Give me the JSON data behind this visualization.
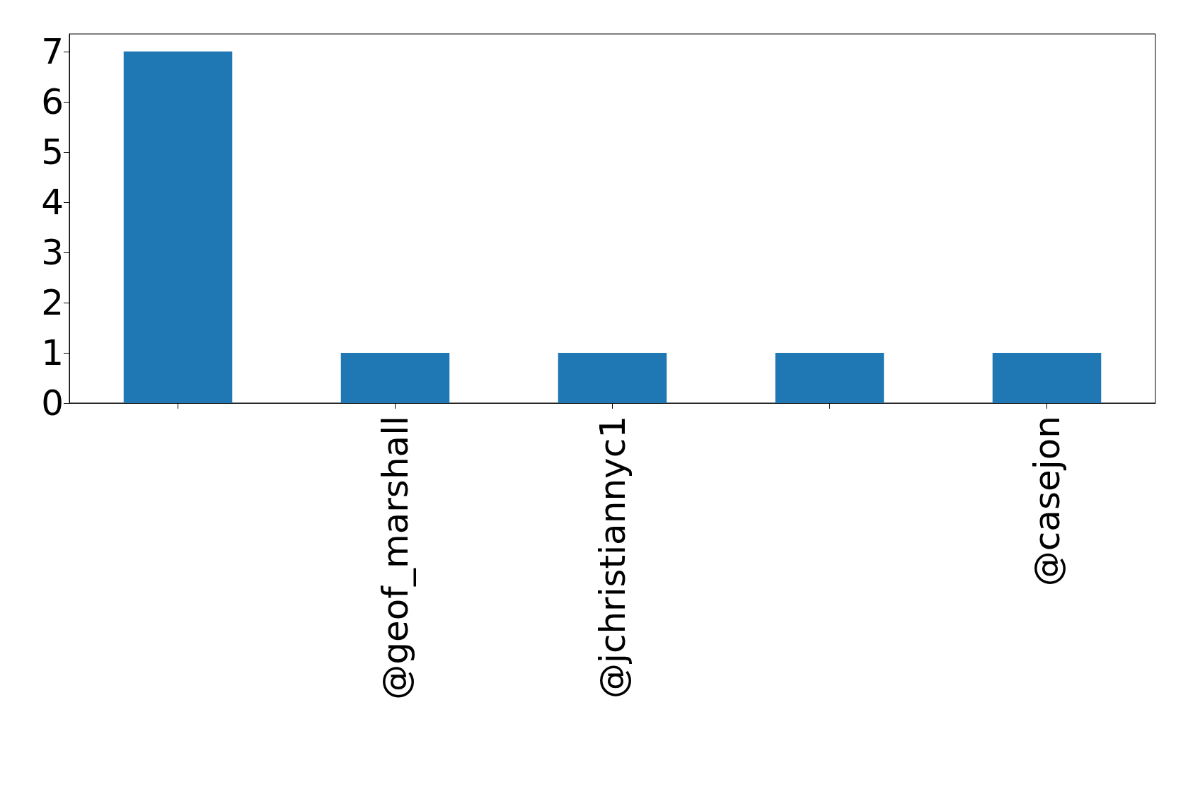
{
  "chart_data": {
    "type": "bar",
    "categories": [
      null,
      "@geof_marshall",
      "@jchristiannyc1",
      null,
      "@casejon"
    ],
    "values": [
      7,
      1,
      1,
      1,
      1
    ],
    "color": "#1f77b4",
    "ylim": [
      0,
      7.35
    ],
    "yticks": [
      0,
      1,
      2,
      3,
      4,
      5,
      6,
      7
    ]
  }
}
